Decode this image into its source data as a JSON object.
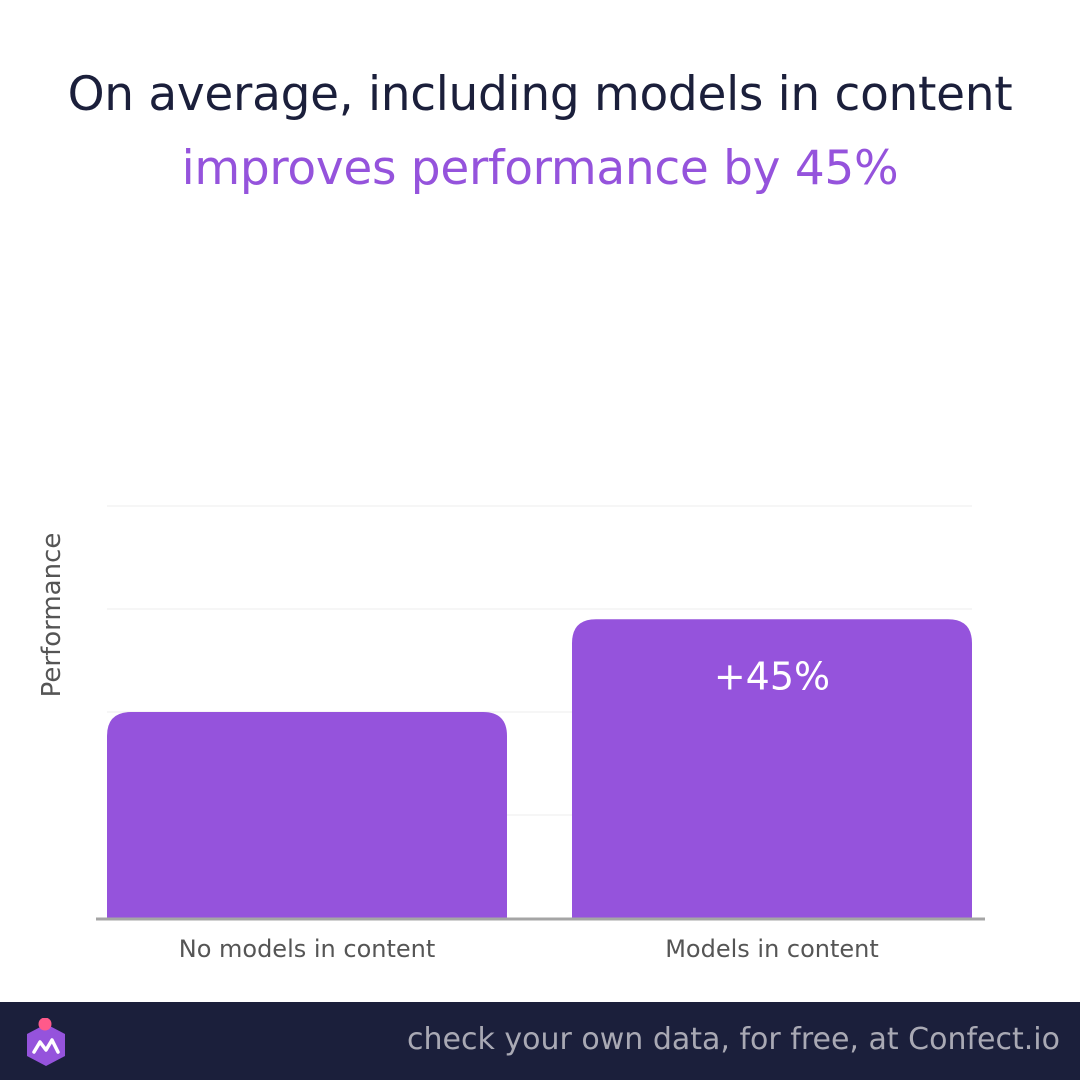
{
  "headline": {
    "line1": "On average, including models in content",
    "line2": "improves performance by 45%"
  },
  "footer": {
    "text": "check your own data, for free, at Confect.io",
    "logo_icon": "confect-logo-icon"
  },
  "colors": {
    "bar": "#9553dc",
    "title_dark": "#1b1f3b",
    "title_accent": "#9553dc",
    "footer_bg": "#1b1f3b",
    "footer_text": "#a9a9b4",
    "axis_text": "#555555"
  },
  "chart_data": {
    "type": "bar",
    "title": "On average, including models in content improves performance by 45%",
    "ylabel": "Performance",
    "xlabel": "",
    "categories": [
      "No models in content",
      "Models in content"
    ],
    "values": [
      100,
      145
    ],
    "data_labels": [
      "",
      "+45%"
    ],
    "ylim": [
      0,
      200
    ],
    "grid": true,
    "legend": "none"
  }
}
